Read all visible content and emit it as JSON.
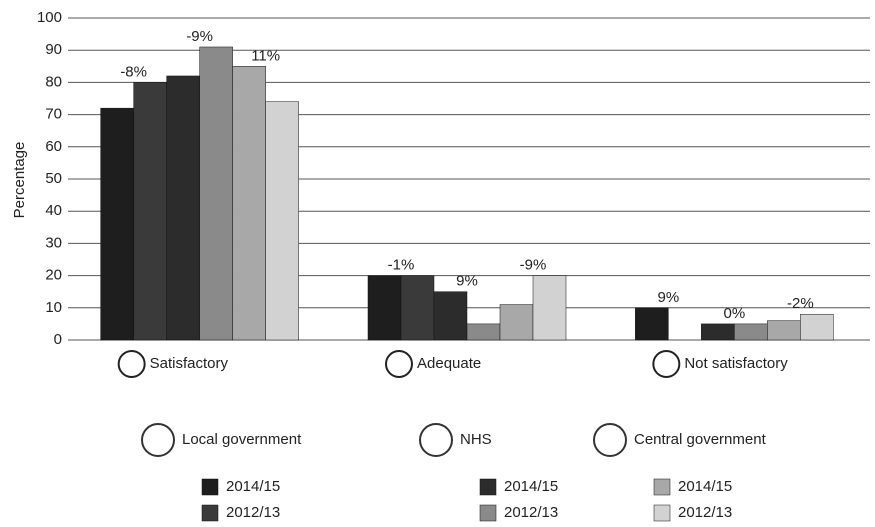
{
  "chart_data": {
    "type": "bar",
    "y_label": "Percentage",
    "categories": [
      "Satisfactory",
      "Adequate",
      "Not satisfactory"
    ],
    "series": [
      {
        "group": "Local government",
        "name": "2014/15",
        "color": "#1e1e1e",
        "values": [
          72,
          20,
          10
        ]
      },
      {
        "group": "Local government",
        "name": "2012/13",
        "color": "#3a3a3a",
        "values": [
          80,
          20,
          0
        ]
      },
      {
        "group": "NHS",
        "name": "2014/15",
        "color": "#2c2c2c",
        "values": [
          82,
          15,
          5
        ]
      },
      {
        "group": "NHS",
        "name": "2012/13",
        "color": "#8a8a8a",
        "values": [
          91,
          5,
          5
        ]
      },
      {
        "group": "Central government",
        "name": "2014/15",
        "color": "#a8a8a8",
        "values": [
          85,
          11,
          6
        ]
      },
      {
        "group": "Central government",
        "name": "2012/13",
        "color": "#d2d2d2",
        "values": [
          74,
          20,
          8
        ]
      }
    ],
    "annotations": [
      [
        "-8%",
        "-9%",
        "11%"
      ],
      [
        "-1%",
        "9%",
        "-9%"
      ],
      [
        "9%",
        "0%",
        "-2%"
      ]
    ],
    "ylim": [
      0,
      100
    ],
    "yticks": [
      0,
      10,
      20,
      30,
      40,
      50,
      60,
      70,
      80,
      90,
      100
    ],
    "grid": true
  }
}
